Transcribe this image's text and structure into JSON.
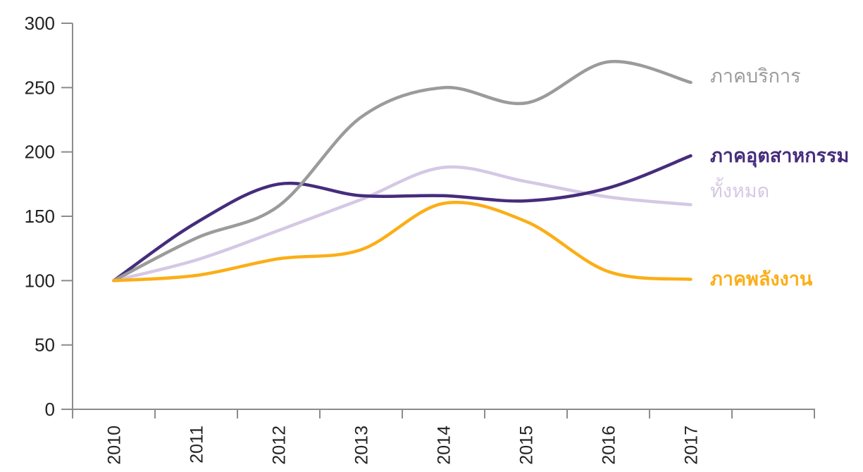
{
  "chart_data": {
    "type": "line",
    "title": "",
    "xlabel": "",
    "ylabel": "",
    "categories": [
      "2010",
      "2011",
      "2012",
      "2013",
      "2014",
      "2015",
      "2016",
      "2017"
    ],
    "ylim": [
      0,
      300
    ],
    "y_tick_step": 50,
    "y_tick_labels": [
      "0",
      "50",
      "100",
      "150",
      "200",
      "250",
      "300"
    ],
    "grid": "off",
    "legend_position": "right-of-line-ends",
    "axis_color": "#8c8c8c",
    "tick_label_color": "#222222",
    "series": [
      {
        "name": "ภาคบริการ",
        "color": "#9b9b9b",
        "label_bold": false,
        "values": [
          100,
          133,
          158,
          227,
          250,
          238,
          270,
          254
        ]
      },
      {
        "name": "ภาคอุตสาหกรรม",
        "color": "#462c7c",
        "label_bold": true,
        "values": [
          100,
          145,
          175,
          166,
          166,
          162,
          172,
          197
        ]
      },
      {
        "name": "ทั้งหมด",
        "color": "#d5c8e5",
        "label_bold": false,
        "values": [
          100,
          116,
          139,
          163,
          188,
          177,
          165,
          159
        ]
      },
      {
        "name": "ภาคพลังงาน",
        "color": "#fbae17",
        "label_bold": true,
        "values": [
          100,
          104,
          117,
          124,
          160,
          146,
          107,
          101
        ]
      }
    ]
  }
}
